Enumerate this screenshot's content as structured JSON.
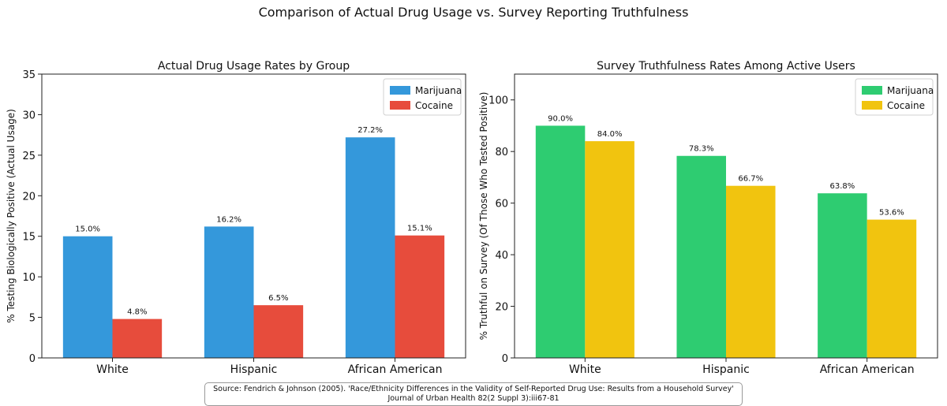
{
  "figure": {
    "suptitle": "Comparison of Actual Drug Usage vs. Survey Reporting Truthfulness",
    "source_line1": "Source: Fendrich & Johnson (2005). 'Race/Ethnicity Differences in the Validity of Self-Reported Drug Use: Results from a Household Survey'",
    "source_line2": "Journal of Urban Health 82(2 Suppl 3):iii67-81"
  },
  "chart_data": [
    {
      "type": "bar",
      "title": "Actual Drug Usage Rates by Group",
      "xlabel": "",
      "ylabel": "% Testing Biologically Positive (Actual Usage)",
      "categories": [
        "White",
        "Hispanic",
        "African American"
      ],
      "series": [
        {
          "name": "Marijuana",
          "values": [
            15.0,
            16.2,
            27.2
          ],
          "color": "#3498db"
        },
        {
          "name": "Cocaine",
          "values": [
            4.8,
            6.5,
            15.1
          ],
          "color": "#e74c3c"
        }
      ],
      "ylim": [
        0,
        35
      ],
      "yticks": [
        0,
        5,
        10,
        15,
        20,
        25,
        30,
        35
      ],
      "value_labels": true,
      "legend": "top-right",
      "grid": false
    },
    {
      "type": "bar",
      "title": "Survey Truthfulness Rates Among Active Users",
      "xlabel": "",
      "ylabel": "% Truthful on Survey (Of Those Who Tested Positive)",
      "categories": [
        "White",
        "Hispanic",
        "African American"
      ],
      "series": [
        {
          "name": "Marijuana",
          "values": [
            90.0,
            78.3,
            63.8
          ],
          "color": "#2ecc71"
        },
        {
          "name": "Cocaine",
          "values": [
            84.0,
            66.7,
            53.6
          ],
          "color": "#f1c40f"
        }
      ],
      "ylim": [
        0,
        110
      ],
      "yticks": [
        0,
        20,
        40,
        60,
        80,
        100
      ],
      "value_labels": true,
      "legend": "top-right",
      "grid": false
    }
  ]
}
